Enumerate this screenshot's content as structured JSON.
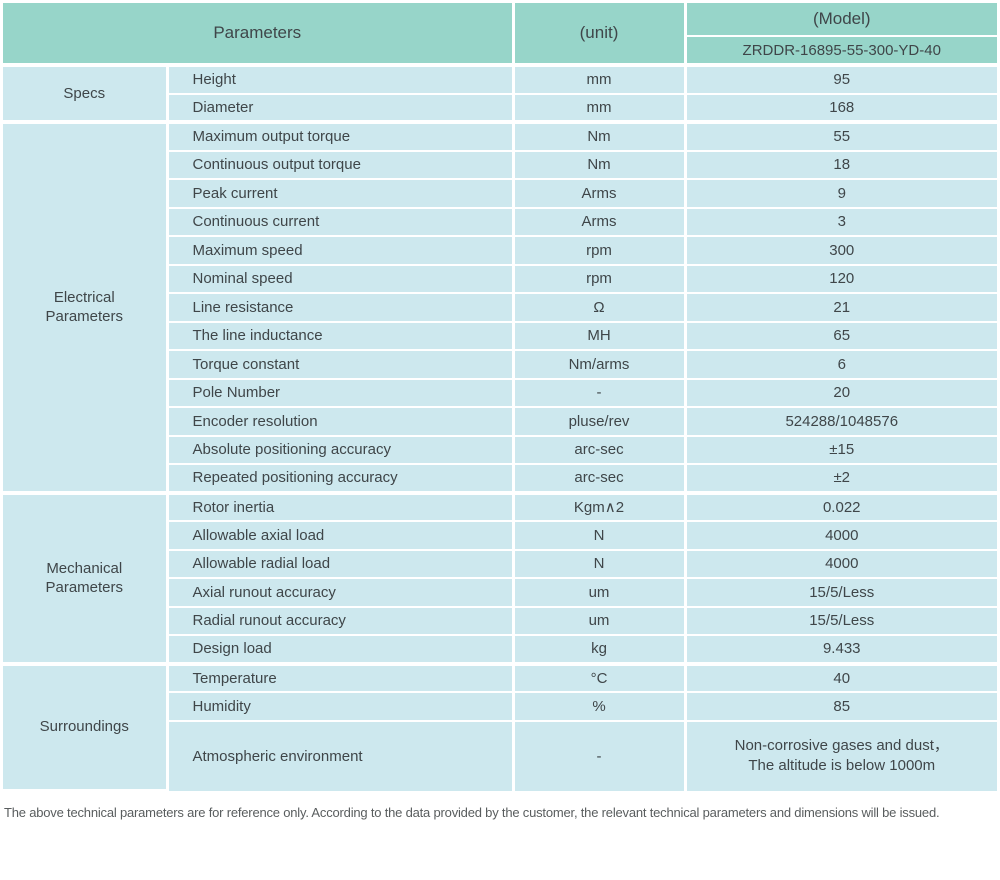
{
  "header": {
    "parameters_label": "Parameters",
    "unit_label": "(unit)",
    "model_label": "(Model)",
    "model_value": "ZRDDR-16895-55-300-YD-40"
  },
  "sections": [
    {
      "label_lines": [
        "Specs"
      ],
      "rows": [
        {
          "param": "Height",
          "unit": "mm",
          "value": "95"
        },
        {
          "param": "Diameter",
          "unit": "mm",
          "value": "168"
        }
      ]
    },
    {
      "label_lines": [
        "Electrical",
        "Parameters"
      ],
      "rows": [
        {
          "param": "Maximum output torque",
          "unit": "Nm",
          "value": "55"
        },
        {
          "param": "Continuous output torque",
          "unit": "Nm",
          "value": "18"
        },
        {
          "param": "Peak current",
          "unit": "Arms",
          "value": "9"
        },
        {
          "param": "Continuous current",
          "unit": "Arms",
          "value": "3"
        },
        {
          "param": "Maximum speed",
          "unit": "rpm",
          "value": "300"
        },
        {
          "param": "Nominal speed",
          "unit": "rpm",
          "value": "120"
        },
        {
          "param": "Line resistance",
          "unit": "Ω",
          "value": "21"
        },
        {
          "param": "The line inductance",
          "unit": "MH",
          "value": "65"
        },
        {
          "param": "Torque constant",
          "unit": "Nm/arms",
          "value": "6"
        },
        {
          "param": "Pole Number",
          "unit": "-",
          "value": "20"
        },
        {
          "param": "Encoder resolution",
          "unit": "pluse/rev",
          "value": "524288/1048576"
        },
        {
          "param": "Absolute positioning accuracy",
          "unit": "arc-sec",
          "value": "±15"
        },
        {
          "param": "Repeated positioning accuracy",
          "unit": "arc-sec",
          "value": "±2"
        }
      ]
    },
    {
      "label_lines": [
        "Mechanical",
        "Parameters"
      ],
      "rows": [
        {
          "param": "Rotor inertia",
          "unit": "Kgm∧2",
          "value": "0.022"
        },
        {
          "param": "Allowable axial load",
          "unit": "N",
          "value": "4000"
        },
        {
          "param": "Allowable radial load",
          "unit": "N",
          "value": "4000"
        },
        {
          "param": "Axial runout accuracy",
          "unit": "um",
          "value": "15/5/Less"
        },
        {
          "param": "Radial runout accuracy",
          "unit": "um",
          "value": "15/5/Less"
        },
        {
          "param": "Design load",
          "unit": "kg",
          "value": "9.433"
        }
      ]
    },
    {
      "label_lines": [
        "Surroundings"
      ],
      "rows": [
        {
          "param": "Temperature",
          "unit": "°C",
          "value": "40"
        },
        {
          "param": "Humidity",
          "unit": "%",
          "value": "85"
        },
        {
          "param": "Atmospheric environment",
          "unit": "-",
          "value_lines": [
            "Non-corrosive gases and dust，",
            "The altitude is below 1000m"
          ]
        }
      ]
    }
  ],
  "footer": {
    "note": "The above technical parameters are for reference only. According to the data provided by the customer, the relevant technical parameters and dimensions will be issued."
  },
  "colors": {
    "header_bg": "#97d5c9",
    "body_bg": "#cde8ee",
    "border": "#ffffff",
    "text": "#3f4649",
    "footer_text": "#595d5e"
  }
}
